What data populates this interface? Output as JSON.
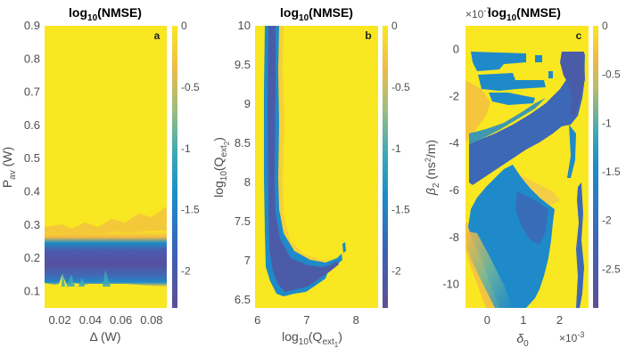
{
  "colors": {
    "yellow": "#f9e721",
    "orange": "#f5b942",
    "teal": "#3aa9c4",
    "blue": "#1e8ac9",
    "midblue": "#2f6fbf",
    "purple": "#5a5aa8",
    "darkpurple": "#5e4f95"
  },
  "chart_data": [
    {
      "type": "heatmap",
      "panel": "a",
      "title_main": "log",
      "title_sub": "10",
      "title_rest": "(NMSE)",
      "xlabel": "Δ (W)",
      "ylabel_main": "P",
      "ylabel_sub": "av",
      "ylabel_rest": " (W)",
      "xlim": [
        0.01,
        0.09
      ],
      "ylim": [
        0.05,
        0.9
      ],
      "xticks": [
        0.02,
        0.04,
        0.06,
        0.08
      ],
      "xtick_labels": [
        "0.02",
        "0.04",
        "0.06",
        "0.08"
      ],
      "yticks": [
        0.1,
        0.2,
        0.3,
        0.4,
        0.5,
        0.6,
        0.7,
        0.8,
        0.9
      ],
      "ytick_labels": [
        "0.1",
        "0.2",
        "0.3",
        "0.4",
        "0.5",
        "0.6",
        "0.7",
        "0.8",
        "0.9"
      ],
      "colorbar": {
        "range": [
          -2.3,
          0
        ],
        "ticks": [
          0,
          -0.5,
          -1,
          -1.5,
          -2
        ],
        "tick_labels": [
          "0",
          "-0.5",
          "-1",
          "-1.5",
          "-2"
        ]
      },
      "description": "Low-error band (log10 NMSE ≈ -2) for P_av between ~0.13 and ~0.27 W across all Δ; elsewhere ≈ 0"
    },
    {
      "type": "heatmap",
      "panel": "b",
      "title_main": "log",
      "title_sub": "10",
      "title_rest": "(NMSE)",
      "xlabel_main": "log",
      "xlabel_sub": "10",
      "xlabel_rest": "(Q",
      "xlabel_sub2": "ext",
      "xlabel_sub3": "1",
      "xlabel_end": ")",
      "ylabel_main": "log",
      "ylabel_sub": "10",
      "ylabel_rest": "(Q",
      "ylabel_sub2": "ext",
      "ylabel_sub3": "2",
      "ylabel_end": ")",
      "xlim": [
        5.95,
        8.45
      ],
      "ylim": [
        6.4,
        10
      ],
      "xticks": [
        6,
        7,
        8
      ],
      "xtick_labels": [
        "6",
        "7",
        "8"
      ],
      "yticks": [
        6.5,
        7,
        7.5,
        8,
        8.5,
        9,
        9.5,
        10
      ],
      "ytick_labels": [
        "6.5",
        "7",
        "7.5",
        "8",
        "8.5",
        "9",
        "9.5",
        "10"
      ],
      "colorbar": {
        "range": [
          -2.3,
          0
        ],
        "ticks": [
          0,
          -0.5,
          -1,
          -1.5,
          -2
        ],
        "tick_labels": [
          "0",
          "-0.5",
          "-1",
          "-1.5",
          "-2"
        ]
      },
      "description": "J-shaped low-error region: vertical band near log10(Qext1) ≈ 6.2-6.4 for high Qext2, curving to minimum around (7, 6.8) and ending near (7.6, 7.2)"
    },
    {
      "type": "heatmap",
      "panel": "c",
      "title_main": "log",
      "title_sub": "10",
      "title_rest": "(NMSE)",
      "xlabel_main": "δ",
      "xlabel_sub": "0",
      "x_multiplier": "×10",
      "x_multiplier_exp": "-3",
      "ylabel_main": "β",
      "ylabel_sub": "2",
      "ylabel_rest": " (ns",
      "ylabel_sup": "2",
      "ylabel_end": "/m)",
      "y_multiplier": "×10",
      "y_multiplier_exp": "-7",
      "xlim": [
        -0.6,
        2.8
      ],
      "ylim": [
        -11,
        1
      ],
      "xticks": [
        0,
        1,
        2
      ],
      "xtick_labels": [
        "0",
        "1",
        "2"
      ],
      "yticks": [
        0,
        -2,
        -4,
        -6,
        -8,
        -10
      ],
      "ytick_labels": [
        "0",
        "-2",
        "-4",
        "-6",
        "-8",
        "-10"
      ],
      "colorbar": {
        "range": [
          -2.9,
          0
        ],
        "ticks": [
          0,
          -0.5,
          -1,
          -1.5,
          -2,
          -2.5
        ],
        "tick_labels": [
          "0",
          "-0.5",
          "-1",
          "-1.5",
          "-2",
          "-2.5"
        ]
      },
      "description": "Fragmented low-error regions: diagonal band from (-0.5,-4) to (2.6,-1), large triangular region lower-left for δ0 in 0-1.8, β2 from -5 to -11, thin strip near δ0 ≈ 2.6"
    }
  ]
}
